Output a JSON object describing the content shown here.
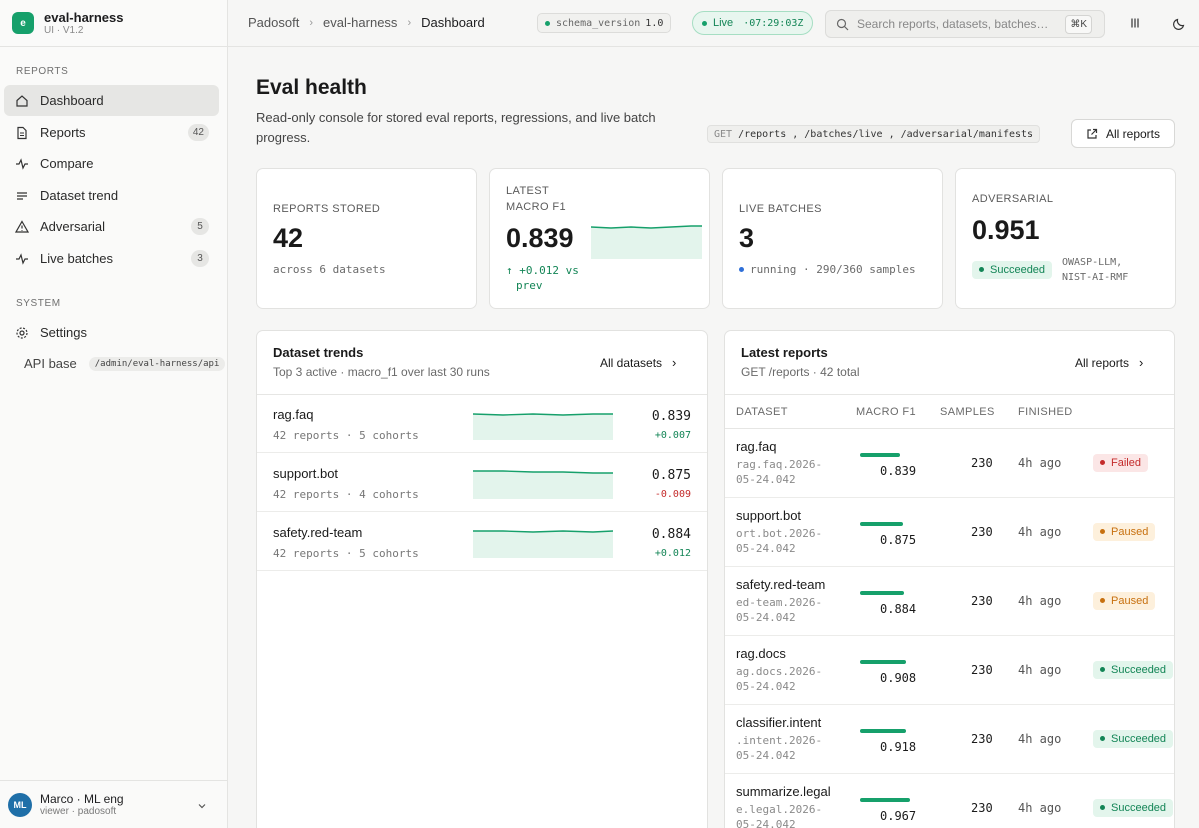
{
  "app": {
    "name": "eval-harness",
    "version": "UI · V1.2",
    "logo_letter": "e"
  },
  "sidebar": {
    "reports_section": "REPORTS",
    "system_section": "SYSTEM",
    "items": [
      {
        "label": "Dashboard",
        "icon": "home-icon",
        "badge": ""
      },
      {
        "label": "Reports",
        "icon": "file-icon",
        "badge": "42"
      },
      {
        "label": "Compare",
        "icon": "pulse-icon",
        "badge": ""
      },
      {
        "label": "Dataset trend",
        "icon": "lines-icon",
        "badge": ""
      },
      {
        "label": "Adversarial",
        "icon": "warning-icon",
        "badge": "5"
      },
      {
        "label": "Live batches",
        "icon": "pulse-icon",
        "badge": "3"
      }
    ],
    "settings_label": "Settings",
    "api_base_label": "API base",
    "api_base_value": "/admin/eval-harness/api"
  },
  "user": {
    "initials": "ML",
    "name": "Marco · ML eng",
    "sub": "viewer · padosoft"
  },
  "topbar": {
    "breadcrumbs": [
      "Padosoft",
      "eval-harness",
      "Dashboard"
    ],
    "schema_label": "schema_version",
    "schema_value": "1.0",
    "live_label": "Live",
    "live_time": "·07:29:03Z",
    "search_placeholder": "Search reports, datasets, batches…",
    "search_kbd": "⌘K"
  },
  "header": {
    "title": "Eval health",
    "description": "Read-only console for stored eval reports, regressions, and live batch progress.",
    "endpoint_method": "GET",
    "endpoints": "/reports , /batches/live , /adversarial/manifests",
    "all_reports_button": "All reports"
  },
  "stats": {
    "reports": {
      "label": "REPORTS STORED",
      "value": "42",
      "sub": "across 6 datasets"
    },
    "macro": {
      "label1": "LATEST",
      "label2": "MACRO F1",
      "value": "0.839",
      "delta1": "↑ +0.012 vs",
      "delta2": "prev"
    },
    "batches": {
      "label": "LIVE BATCHES",
      "value": "3",
      "sub": "running · 290/360 samples"
    },
    "adversarial": {
      "label": "ADVERSARIAL",
      "value": "0.951",
      "status": "Succeeded",
      "tags1": "OWASP-LLM,",
      "tags2": "NIST-AI-RMF"
    }
  },
  "trends": {
    "title": "Dataset trends",
    "subtitle": "Top 3 active · macro_f1 over last 30 runs",
    "link": "All datasets",
    "rows": [
      {
        "name": "rag.faq",
        "sub": "42 reports · 5 cohorts",
        "value": "0.839",
        "delta": "+0.007",
        "dir": "pos"
      },
      {
        "name": "support.bot",
        "sub": "42 reports · 4 cohorts",
        "value": "0.875",
        "delta": "-0.009",
        "dir": "neg"
      },
      {
        "name": "safety.red-team",
        "sub": "42 reports · 5 cohorts",
        "value": "0.884",
        "delta": "+0.012",
        "dir": "pos"
      }
    ]
  },
  "latest": {
    "title": "Latest reports",
    "subtitle": "GET /reports · 42 total",
    "link": "All reports",
    "columns": [
      "DATASET",
      "MACRO F1",
      "SAMPLES",
      "FINISHED"
    ],
    "rows": [
      {
        "dataset": "rag.faq",
        "id1": "rag.faq.2026-",
        "id2": "05-24.042",
        "f1": "0.839",
        "f1_value": 0.839,
        "samples": "230",
        "finished": "4h ago",
        "status": "Failed",
        "status_kind": "failed"
      },
      {
        "dataset": "support.bot",
        "id1": "ort.bot.2026-",
        "id2": "05-24.042",
        "f1": "0.875",
        "f1_value": 0.875,
        "samples": "230",
        "finished": "4h ago",
        "status": "Paused",
        "status_kind": "paused"
      },
      {
        "dataset": "safety.red-team",
        "id1": "ed-team.2026-",
        "id2": "05-24.042",
        "f1": "0.884",
        "f1_value": 0.884,
        "samples": "230",
        "finished": "4h ago",
        "status": "Paused",
        "status_kind": "paused"
      },
      {
        "dataset": "rag.docs",
        "id1": "ag.docs.2026-",
        "id2": "05-24.042",
        "f1": "0.908",
        "f1_value": 0.908,
        "samples": "230",
        "finished": "4h ago",
        "status": "Succeeded",
        "status_kind": "success"
      },
      {
        "dataset": "classifier.intent",
        "id1": ".intent.2026-",
        "id2": "05-24.042",
        "f1": "0.918",
        "f1_value": 0.918,
        "samples": "230",
        "finished": "4h ago",
        "status": "Succeeded",
        "status_kind": "success"
      },
      {
        "dataset": "summarize.legal",
        "id1": "e.legal.2026-",
        "id2": "05-24.042",
        "f1": "0.967",
        "f1_value": 0.967,
        "samples": "230",
        "finished": "4h ago",
        "status": "Succeeded",
        "status_kind": "success"
      }
    ]
  },
  "colors": {
    "accent": "#16a06b",
    "failed": "#c42b2b",
    "paused": "#c7700f",
    "running": "#2f6fd8"
  }
}
